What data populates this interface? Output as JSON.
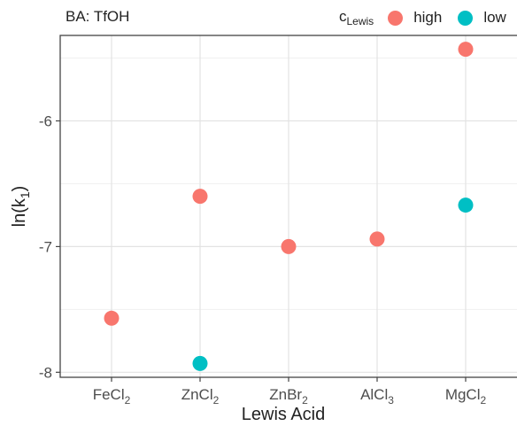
{
  "facet_title": "BA: TfOH",
  "legend": {
    "title_main": "c",
    "title_sub": "Lewis",
    "items": [
      {
        "label": "high",
        "color": "#F8766D"
      },
      {
        "label": "low",
        "color": "#00BFC4"
      }
    ]
  },
  "chart_data": {
    "type": "scatter",
    "title": "BA: TfOH",
    "xlabel": "Lewis Acid",
    "ylabel": "ln(k1)",
    "categories": [
      {
        "base": "FeCl",
        "sub": "2"
      },
      {
        "base": "ZnCl",
        "sub": "2"
      },
      {
        "base": "ZnBr",
        "sub": "2"
      },
      {
        "base": "AlCl",
        "sub": "3"
      },
      {
        "base": "MgCl",
        "sub": "2"
      }
    ],
    "ylim": [
      -8.04,
      -5.32
    ],
    "yticks": [
      -8,
      -7,
      -6
    ],
    "grid": true,
    "legend_position": "top-right",
    "series": [
      {
        "name": "high",
        "color": "#F8766D",
        "values": [
          -7.57,
          -6.6,
          -7.0,
          -6.94,
          -5.43
        ]
      },
      {
        "name": "low",
        "color": "#00BFC4",
        "values": [
          null,
          -7.93,
          null,
          null,
          -6.67
        ]
      }
    ]
  }
}
